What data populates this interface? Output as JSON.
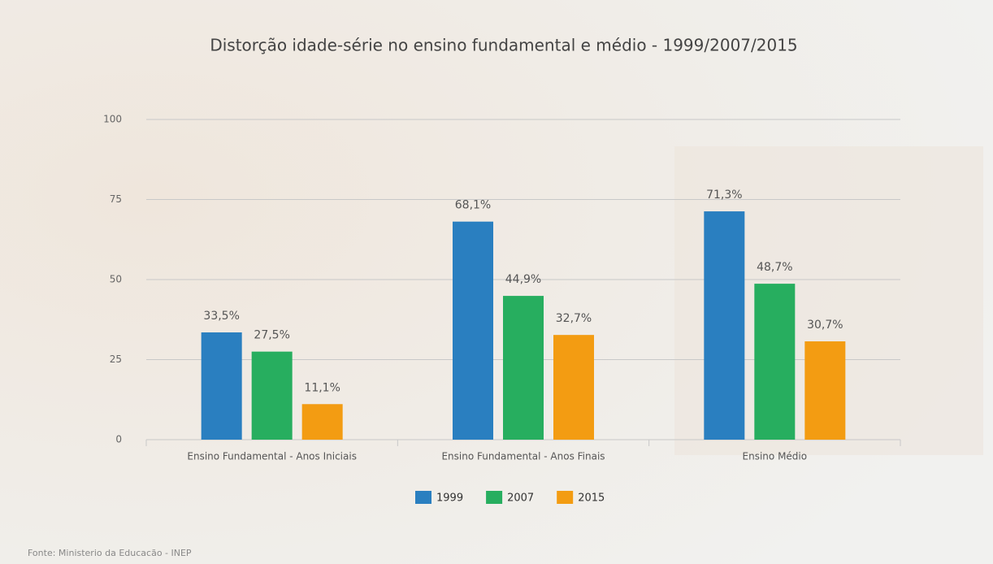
{
  "chart_data": {
    "type": "bar",
    "title": "Distorção idade-série no ensino fundamental e médio - 1999/2007/2015",
    "categories": [
      "Ensino Fundamental - Anos Iniciais",
      "Ensino Fundamental - Anos Finais",
      "Ensino Médio"
    ],
    "series": [
      {
        "name": "1999",
        "color": "#2a7fc0",
        "values": [
          33.5,
          68.1,
          71.3
        ],
        "value_labels": [
          "33,5%",
          "68,1%",
          "71,3%"
        ]
      },
      {
        "name": "2007",
        "color": "#27ae5f",
        "values": [
          27.5,
          44.9,
          48.7
        ],
        "value_labels": [
          "27,5%",
          "44,9%",
          "48,7%"
        ]
      },
      {
        "name": "2015",
        "color": "#f39c12",
        "values": [
          11.1,
          32.7,
          30.7
        ],
        "value_labels": [
          "11,1%",
          "32,7%",
          "30,7%"
        ]
      }
    ],
    "ylim": [
      0,
      100
    ],
    "yticks": [
      0,
      25,
      50,
      75,
      100
    ],
    "grid": true,
    "legend": "bottom",
    "source": "Fonte: Ministerio da Educacão - INEP"
  }
}
